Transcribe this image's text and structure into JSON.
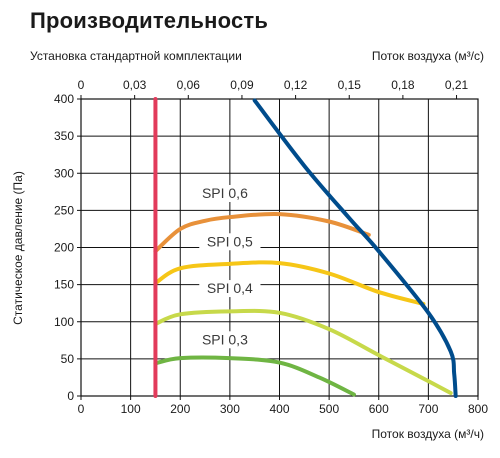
{
  "title": "Производительность",
  "subtitle": "Установка стандартной комплектации",
  "chart_data": {
    "type": "line",
    "x_axis": {
      "label": "Поток воздуха (м³/ч)",
      "range": [
        0,
        800
      ],
      "ticks": [
        0,
        100,
        200,
        300,
        400,
        500,
        600,
        700,
        800
      ]
    },
    "x2_axis": {
      "label": "Поток воздуха (м³/с)",
      "range": [
        0,
        0.222
      ],
      "ticks": [
        "0",
        "0,03",
        "0,06",
        "0,09",
        "0,12",
        "0,15",
        "0,18",
        "0,21"
      ],
      "tick_values": [
        0,
        0.03,
        0.06,
        0.09,
        0.12,
        0.15,
        0.18,
        0.21
      ]
    },
    "y_axis": {
      "label": "Статическое давление (Па)",
      "range": [
        0,
        400
      ],
      "ticks": [
        0,
        50,
        100,
        150,
        200,
        250,
        300,
        350,
        400
      ]
    },
    "grid": true,
    "series": [
      {
        "name": "SPI 0,6",
        "color": "#e8913a",
        "label_at": [
          290,
          268
        ],
        "points": [
          [
            150,
            195
          ],
          [
            200,
            225
          ],
          [
            250,
            236
          ],
          [
            300,
            241
          ],
          [
            400,
            245
          ],
          [
            500,
            235
          ],
          [
            580,
            217
          ]
        ]
      },
      {
        "name": "SPI 0,5",
        "color": "#f6c617",
        "label_at": [
          300,
          203
        ],
        "points": [
          [
            150,
            152
          ],
          [
            200,
            172
          ],
          [
            300,
            178
          ],
          [
            400,
            179
          ],
          [
            500,
            165
          ],
          [
            600,
            140
          ],
          [
            690,
            124
          ]
        ]
      },
      {
        "name": "SPI 0,4",
        "color": "#c7d94a",
        "label_at": [
          300,
          140
        ],
        "points": [
          [
            150,
            97
          ],
          [
            200,
            110
          ],
          [
            300,
            114
          ],
          [
            400,
            112
          ],
          [
            500,
            90
          ],
          [
            600,
            55
          ],
          [
            700,
            20
          ],
          [
            745,
            4
          ]
        ]
      },
      {
        "name": "SPI 0,3",
        "color": "#6fb543",
        "label_at": [
          290,
          71
        ],
        "points": [
          [
            150,
            44
          ],
          [
            200,
            51
          ],
          [
            300,
            51
          ],
          [
            400,
            45
          ],
          [
            480,
            25
          ],
          [
            550,
            2
          ]
        ]
      },
      {
        "name": "",
        "color": "#004c8c",
        "points": [
          [
            350,
            398
          ],
          [
            450,
            310
          ],
          [
            540,
            240
          ],
          [
            600,
            195
          ],
          [
            700,
            112
          ],
          [
            745,
            60
          ],
          [
            752,
            30
          ],
          [
            755,
            0
          ]
        ]
      },
      {
        "name": "",
        "color": "#e23b5b",
        "points": [
          [
            150,
            400
          ],
          [
            150,
            0
          ]
        ]
      }
    ]
  }
}
